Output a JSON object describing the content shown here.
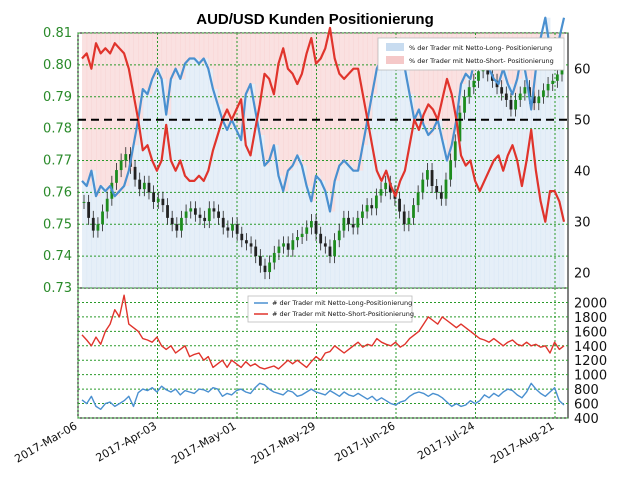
{
  "chart_data": [
    {
      "type": "line",
      "title": "AUD/USD Kunden Positionierung",
      "x_labels": [
        "2017-Mar-06",
        "2017-Apr-03",
        "2017-May-01",
        "2017-May-29",
        "2017-Jun-26",
        "2017-Jul-24",
        "2017-Aug-21"
      ],
      "y_left_ticks": [
        "0.73",
        "0.74",
        "0.75",
        "0.76",
        "0.77",
        "0.78",
        "0.79",
        "0.80",
        "0.81"
      ],
      "y_right_ticks": [
        "20",
        "30",
        "40",
        "50",
        "60"
      ],
      "y_left_range": [
        0.73,
        0.81
      ],
      "y_right_range": [
        17,
        67
      ],
      "reference_line": 50,
      "grid": true,
      "legend_position": "top-right",
      "legend": [
        "% der Trader mit Netto-Long- Positionierung",
        "% der Trader mit Netto-Short- Positionierung"
      ],
      "colors": {
        "long": "#4a90d0",
        "short": "#e0342c",
        "long_fill": "#c8dcf0",
        "short_fill": "#f5c8c8",
        "grid": "#2a9a2a",
        "candle": "#1e8c1e"
      },
      "candles_close": [
        0.757,
        0.752,
        0.748,
        0.75,
        0.754,
        0.758,
        0.763,
        0.767,
        0.77,
        0.772,
        0.768,
        0.764,
        0.761,
        0.763,
        0.76,
        0.757,
        0.758,
        0.756,
        0.752,
        0.75,
        0.748,
        0.752,
        0.754,
        0.755,
        0.753,
        0.752,
        0.751,
        0.755,
        0.754,
        0.752,
        0.749,
        0.748,
        0.75,
        0.747,
        0.745,
        0.744,
        0.743,
        0.74,
        0.737,
        0.735,
        0.738,
        0.741,
        0.743,
        0.744,
        0.742,
        0.745,
        0.746,
        0.747,
        0.749,
        0.751,
        0.747,
        0.744,
        0.743,
        0.74,
        0.745,
        0.748,
        0.752,
        0.75,
        0.749,
        0.752,
        0.754,
        0.756,
        0.755,
        0.759,
        0.761,
        0.763,
        0.76,
        0.758,
        0.754,
        0.75,
        0.752,
        0.756,
        0.76,
        0.764,
        0.767,
        0.762,
        0.76,
        0.758,
        0.764,
        0.77,
        0.776,
        0.785,
        0.79,
        0.793,
        0.795,
        0.798,
        0.8,
        0.797,
        0.795,
        0.793,
        0.791,
        0.789,
        0.786,
        0.789,
        0.791,
        0.793,
        0.79,
        0.788,
        0.79,
        0.792,
        0.794,
        0.795,
        0.797,
        0.799
      ],
      "series": [
        {
          "name": "% der Trader mit Netto-Long- Positionierung",
          "values": [
            38,
            37,
            40,
            35,
            37,
            36,
            37,
            35,
            36,
            37,
            40,
            45,
            50,
            56,
            55,
            58,
            60,
            58,
            51,
            58,
            60,
            58,
            61,
            62,
            62,
            61,
            62,
            60,
            56,
            53,
            50,
            48,
            50,
            48,
            46,
            55,
            57,
            52,
            47,
            41,
            42,
            45,
            39,
            36,
            40,
            41,
            43,
            41,
            37,
            34,
            39,
            38,
            36,
            32,
            38,
            41,
            42,
            41,
            40,
            40,
            45,
            50,
            55,
            60,
            62,
            60,
            63,
            65,
            62,
            60,
            55,
            50,
            52,
            49,
            47,
            48,
            50,
            46,
            42,
            45,
            50,
            57,
            59,
            58,
            62,
            64,
            62,
            60,
            58,
            57,
            60,
            57,
            55,
            58,
            63,
            58,
            52,
            60,
            66,
            70,
            64,
            64,
            66,
            70
          ]
        },
        {
          "name": "% der Trader mit Netto-Short- Positionierung",
          "values": [
            62,
            63,
            60,
            65,
            63,
            64,
            63,
            65,
            64,
            63,
            60,
            55,
            50,
            44,
            45,
            42,
            40,
            42,
            49,
            42,
            40,
            42,
            39,
            38,
            38,
            39,
            38,
            40,
            44,
            47,
            50,
            52,
            50,
            52,
            54,
            45,
            43,
            48,
            53,
            59,
            58,
            55,
            61,
            64,
            60,
            59,
            57,
            59,
            63,
            66,
            61,
            62,
            64,
            68,
            62,
            59,
            58,
            59,
            60,
            60,
            55,
            50,
            45,
            40,
            38,
            40,
            37,
            35,
            38,
            40,
            45,
            50,
            48,
            51,
            53,
            52,
            50,
            54,
            58,
            55,
            50,
            43,
            41,
            42,
            38,
            36,
            38,
            40,
            42,
            43,
            40,
            43,
            45,
            42,
            37,
            42,
            48,
            40,
            34,
            30,
            36,
            36,
            34,
            30
          ]
        }
      ]
    },
    {
      "type": "line",
      "legend": [
        "# der Trader mit Netto-Long-Positionierung",
        "# der Trader mit Netto-Short-Positionierung"
      ],
      "legend_position": "top-center",
      "y_right_ticks": [
        "400",
        "600",
        "800",
        "1000",
        "1200",
        "1400",
        "1600",
        "1800",
        "2000"
      ],
      "y_range": [
        400,
        2200
      ],
      "grid": true,
      "series": [
        {
          "name": "# der Trader mit Netto-Long-Positionierung",
          "values": [
            650,
            600,
            700,
            560,
            520,
            600,
            620,
            560,
            600,
            640,
            700,
            560,
            750,
            800,
            780,
            820,
            760,
            840,
            790,
            760,
            800,
            720,
            780,
            760,
            740,
            800,
            790,
            760,
            820,
            800,
            700,
            740,
            720,
            780,
            800,
            760,
            740,
            820,
            880,
            860,
            800,
            760,
            740,
            720,
            780,
            760,
            700,
            720,
            760,
            800,
            760,
            740,
            720,
            780,
            740,
            700,
            760,
            720,
            700,
            740,
            700,
            660,
            700,
            640,
            680,
            640,
            600,
            580,
            620,
            640,
            700,
            740,
            760,
            740,
            700,
            740,
            720,
            680,
            620,
            560,
            600,
            560,
            580,
            640,
            600,
            640,
            720,
            680,
            740,
            700,
            760,
            800,
            780,
            720,
            680,
            760,
            880,
            800,
            740,
            700,
            760,
            820,
            640,
            580
          ]
        },
        {
          "name": "# der Trader mit Netto-Short-Positionierung",
          "values": [
            1550,
            1480,
            1400,
            1520,
            1420,
            1600,
            1700,
            1900,
            1800,
            2100,
            1700,
            1650,
            1600,
            1500,
            1480,
            1450,
            1520,
            1400,
            1350,
            1400,
            1300,
            1350,
            1400,
            1250,
            1280,
            1300,
            1200,
            1250,
            1100,
            1150,
            1200,
            1100,
            1200,
            1150,
            1100,
            1180,
            1120,
            1150,
            1100,
            1080,
            1100,
            1120,
            1080,
            1140,
            1200,
            1150,
            1200,
            1150,
            1100,
            1180,
            1250,
            1200,
            1300,
            1320,
            1400,
            1350,
            1300,
            1350,
            1400,
            1450,
            1380,
            1420,
            1400,
            1500,
            1450,
            1420,
            1400,
            1450,
            1380,
            1420,
            1500,
            1550,
            1600,
            1700,
            1800,
            1750,
            1700,
            1800,
            1750,
            1700,
            1650,
            1700,
            1650,
            1600,
            1550,
            1500,
            1480,
            1450,
            1500,
            1450,
            1400,
            1450,
            1480,
            1420,
            1400,
            1450,
            1400,
            1420,
            1380,
            1400,
            1300,
            1450,
            1350,
            1400
          ]
        }
      ]
    }
  ]
}
